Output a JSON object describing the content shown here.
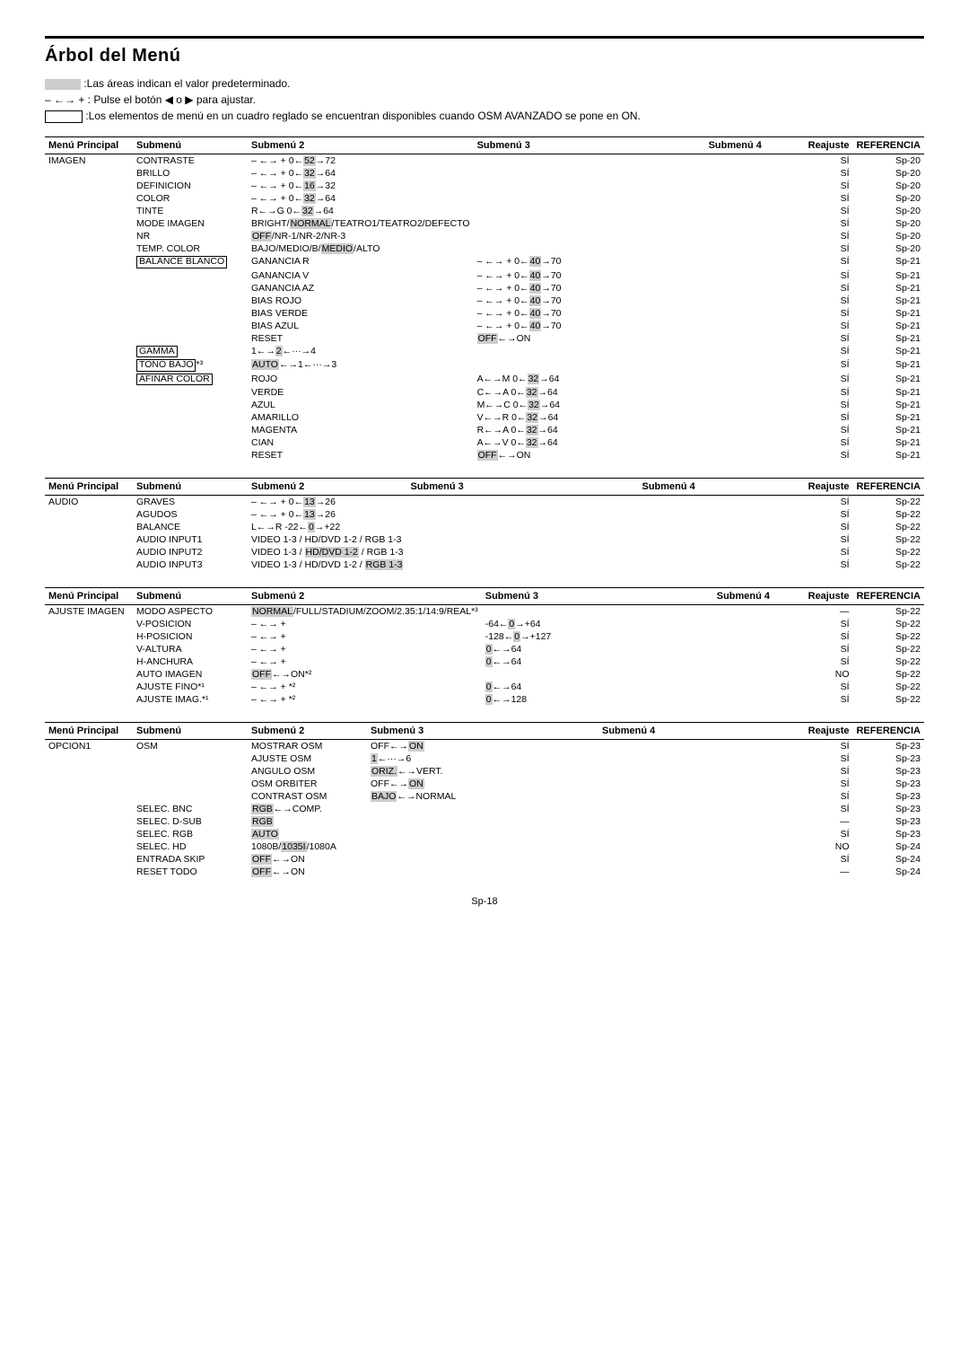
{
  "page": {
    "title": "Árbol del Menú",
    "intro_line1_after_box": ":Las áreas indican el valor predeterminado.",
    "intro_line2": "– ←→ + : Pulse el botón ◀ o ▶ para ajustar.",
    "intro_line3_after_box": ":Los elementos de menú en un cuadro reglado se encuentran disponibles cuando OSM AVANZADO se pone en ON.",
    "footer": "Sp-18"
  },
  "headers": {
    "main": "Menú Principal",
    "sub": "Submenú",
    "sub2": "Submenú 2",
    "sub3": "Submenú 3",
    "sub4": "Submenú 4",
    "reajuste": "Reajuste",
    "ref": "REFERENCIA"
  },
  "tables": [
    {
      "rows": [
        {
          "main": "IMAGEN",
          "sub": "CONTRASTE",
          "s2": "– ←→ +  0←<g>52</g>→72",
          "re": "SÍ",
          "ref": "Sp-20"
        },
        {
          "sub": "BRILLO",
          "s2": "– ←→ +  0←<g>32</g>→64",
          "re": "SÍ",
          "ref": "Sp-20"
        },
        {
          "sub": "DEFINICION",
          "s2": "– ←→ +  0←<g>16</g>→32",
          "re": "SÍ",
          "ref": "Sp-20"
        },
        {
          "sub": "COLOR",
          "s2": "– ←→ +  0←<g>32</g>→64",
          "re": "SÍ",
          "ref": "Sp-20"
        },
        {
          "sub": "TINTE",
          "s2": "R←→G   0←<g>32</g>→64",
          "re": "SÍ",
          "ref": "Sp-20"
        },
        {
          "sub": "MODE IMAGEN",
          "s2": "BRIGHT/<g>NORMAL</g>/TEATRO1/TEATRO2/DEFECTO",
          "re": "SÍ",
          "ref": "Sp-20"
        },
        {
          "sub": "NR",
          "s2": "<g>OFF</g>/NR-1/NR-2/NR-3",
          "re": "SÍ",
          "ref": "Sp-20"
        },
        {
          "sub": "TEMP. COLOR",
          "s2": "BAJO/MEDIO/B/<g>MEDIO</g>/ALTO",
          "re": "SÍ",
          "ref": "Sp-20"
        },
        {
          "sub": "<b>BALANCE BLANCO</b>",
          "s2": "GANANCIA R",
          "s3": "– ←→ +  0←<g>40</g>→70",
          "re": "SÍ",
          "ref": "Sp-21"
        },
        {
          "s2": "GANANCIA V",
          "s3": "– ←→ +  0←<g>40</g>→70",
          "re": "SÍ",
          "ref": "Sp-21"
        },
        {
          "s2": "GANANCIA AZ",
          "s3": "– ←→ +  0←<g>40</g>→70",
          "re": "SÍ",
          "ref": "Sp-21"
        },
        {
          "s2": "BIAS ROJO",
          "s3": "– ←→ +  0←<g>40</g>→70",
          "re": "SÍ",
          "ref": "Sp-21"
        },
        {
          "s2": "BIAS VERDE",
          "s3": "– ←→ +  0←<g>40</g>→70",
          "re": "SÍ",
          "ref": "Sp-21"
        },
        {
          "s2": "BIAS AZUL",
          "s3": "– ←→ +  0←<g>40</g>→70",
          "re": "SÍ",
          "ref": "Sp-21"
        },
        {
          "s2": "RESET",
          "s3": "<g>OFF</g>←→ON",
          "re": "SÍ",
          "ref": "Sp-21"
        },
        {
          "sub": "<b>GAMMA</b>",
          "s2": "1←→<g>2</g>←···→4",
          "re": "SÍ",
          "ref": "Sp-21"
        },
        {
          "sub": "<b>TONO BAJO</b>*³",
          "s2": "<g>AUTO</g>←→1←···→3",
          "re": "SÍ",
          "ref": "Sp-21"
        },
        {
          "sub": "<b>AFINAR COLOR</b>",
          "s2": "ROJO",
          "s3": "A←→M   0←<g>32</g>→64",
          "re": "SÍ",
          "ref": "Sp-21"
        },
        {
          "s2": "VERDE",
          "s3": "C←→A   0←<g>32</g>→64",
          "re": "SÍ",
          "ref": "Sp-21"
        },
        {
          "s2": "AZUL",
          "s3": "M←→C   0←<g>32</g>→64",
          "re": "SÍ",
          "ref": "Sp-21"
        },
        {
          "s2": "AMARILLO",
          "s3": "V←→R   0←<g>32</g>→64",
          "re": "SÍ",
          "ref": "Sp-21"
        },
        {
          "s2": "MAGENTA",
          "s3": "R←→A   0←<g>32</g>→64",
          "re": "SÍ",
          "ref": "Sp-21"
        },
        {
          "s2": "CIAN",
          "s3": "A←→V   0←<g>32</g>→64",
          "re": "SÍ",
          "ref": "Sp-21"
        },
        {
          "s2": "RESET",
          "s3": "<g>OFF</g>←→ON",
          "re": "SÍ",
          "ref": "Sp-21"
        }
      ]
    },
    {
      "rows": [
        {
          "main": "AUDIO",
          "sub": "GRAVES",
          "s2": "– ←→ +  0←<g>13</g>→26",
          "re": "SÍ",
          "ref": "Sp-22"
        },
        {
          "sub": "AGUDOS",
          "s2": "– ←→ +  0←<g>13</g>→26",
          "re": "SÍ",
          "ref": "Sp-22"
        },
        {
          "sub": "BALANCE",
          "s2": "L←→R   -22←<g>0</g>→+22",
          "re": "SÍ",
          "ref": "Sp-22"
        },
        {
          "sub": "AUDIO INPUT1",
          "s2": "VIDEO 1-3 / HD/DVD 1-2 / RGB 1-3",
          "re": "SÍ",
          "ref": "Sp-22"
        },
        {
          "sub": "AUDIO INPUT2",
          "s2": "VIDEO 1-3 / <g>HD/DVD 1-2</g> / RGB 1-3",
          "re": "SÍ",
          "ref": "Sp-22"
        },
        {
          "sub": "AUDIO INPUT3",
          "s2": "VIDEO 1-3 / HD/DVD 1-2 / <g>RGB 1-3</g>",
          "re": "SÍ",
          "ref": "Sp-22"
        }
      ]
    },
    {
      "rows": [
        {
          "main": "AJUSTE IMAGEN",
          "sub": "MODO ASPECTO",
          "s2": "<g>NORMAL</g>/FULL/STADIUM/ZOOM/2.35:1/14:9/REAL*³",
          "re": "—",
          "ref": "Sp-22"
        },
        {
          "sub": "V-POSICION",
          "s2": "– ←→ +",
          "s3": "-64←<g>0</g>→+64",
          "re": "SÍ",
          "ref": "Sp-22"
        },
        {
          "sub": "H-POSICION",
          "s2": "– ←→ +",
          "s3": "-128←<g>0</g>→+127",
          "re": "SÍ",
          "ref": "Sp-22"
        },
        {
          "sub": "V-ALTURA",
          "s2": "– ←→ +",
          "s3": "<g>0</g>←→64",
          "re": "SÍ",
          "ref": "Sp-22"
        },
        {
          "sub": "H-ANCHURA",
          "s2": "– ←→ +",
          "s3": "<g>0</g>←→64",
          "re": "SÍ",
          "ref": "Sp-22"
        },
        {
          "sub": "AUTO IMAGEN",
          "s2": "<g>OFF</g>←→ON*²",
          "re": "NO",
          "ref": "Sp-22"
        },
        {
          "sub": "AJUSTE FINO*¹",
          "s2": "– ←→ + *²",
          "s3": "<g>0</g>←→64",
          "re": "SÍ",
          "ref": "Sp-22"
        },
        {
          "sub": "AJUSTE IMAG.*¹",
          "s2": "– ←→ + *²",
          "s3": "<g>0</g>←→128",
          "re": "SÍ",
          "ref": "Sp-22"
        }
      ]
    },
    {
      "rows": [
        {
          "main": "OPCION1",
          "sub": "OSM",
          "s2": "MOSTRAR OSM",
          "s3": "OFF←→<g>ON</g>",
          "re": "SÍ",
          "ref": "Sp-23"
        },
        {
          "s2": "AJUSTE OSM",
          "s3": "<g>1</g>←···→6",
          "re": "SÍ",
          "ref": "Sp-23"
        },
        {
          "s2": "ANGULO OSM",
          "s3": "<g>ORIZ.</g>←→VERT.",
          "re": "SÍ",
          "ref": "Sp-23"
        },
        {
          "s2": "OSM ORBITER",
          "s3": "OFF←→<g>ON</g>",
          "re": "SÍ",
          "ref": "Sp-23"
        },
        {
          "s2": "CONTRAST OSM",
          "s3": "<g>BAJO</g>←→NORMAL",
          "re": "SÍ",
          "ref": "Sp-23"
        },
        {
          "sub": "SELEC. BNC",
          "s2": "<g>RGB</g>←→COMP.",
          "re": "SÍ",
          "ref": "Sp-23"
        },
        {
          "sub": "SELEC. D-SUB",
          "s2": "<g>RGB</g>",
          "re": "—",
          "ref": "Sp-23"
        },
        {
          "sub": "SELEC. RGB",
          "s2": "<g>AUTO</g>",
          "re": "SÍ",
          "ref": "Sp-23"
        },
        {
          "sub": "SELEC. HD",
          "s2": "1080B/<g>1035I</g>/1080A",
          "re": "NO",
          "ref": "Sp-24"
        },
        {
          "sub": "ENTRADA SKIP",
          "s2": "<g>OFF</g>←→ON",
          "re": "SÍ",
          "ref": "Sp-24"
        },
        {
          "sub": "RESET TODO",
          "s2": "<g>OFF</g>←→ON",
          "re": "—",
          "ref": "Sp-24"
        }
      ]
    }
  ]
}
